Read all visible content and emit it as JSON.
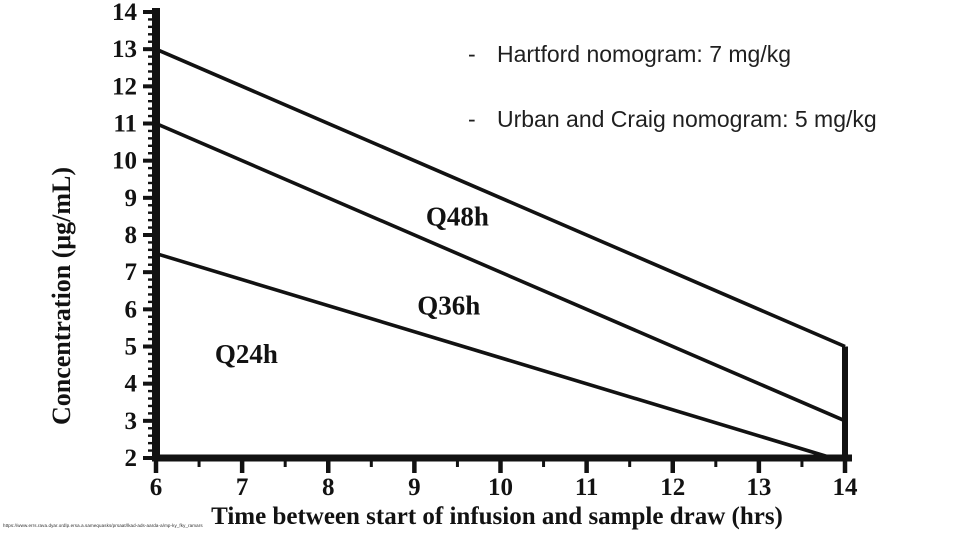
{
  "slide": {
    "notes": [
      {
        "bullet": "-",
        "text": "Hartford nomogram: 7 mg/kg"
      },
      {
        "bullet": "-",
        "text": "Urban and Craig nomogram: 5 mg/kg"
      }
    ],
    "source_url": "https://www.errs.rava.dyar.ordlp.ersa.a.samequasks/prsaat/lkad-ads-aarda-a/mp-ky_fky_ramars",
    "text_color": "#1f1f1f"
  },
  "chart_data": {
    "type": "line",
    "title": "",
    "xlabel": "Time between start of infusion and sample draw (hrs)",
    "ylabel": "Concentration (μg/mL)",
    "xlim": [
      6,
      14
    ],
    "ylim": [
      2,
      14
    ],
    "x_major_ticks": [
      6,
      7,
      8,
      9,
      10,
      11,
      12,
      13,
      14
    ],
    "x_minor_step": 0.5,
    "y_major_ticks": [
      2,
      3,
      4,
      5,
      6,
      7,
      8,
      9,
      10,
      11,
      12,
      13,
      14
    ],
    "y_minor_step": 0.2,
    "grid": false,
    "legend_position": "inline-labels",
    "ink_color": "#121212",
    "series": [
      {
        "name": "Q48h",
        "points": [
          [
            6,
            13
          ],
          [
            14,
            5
          ]
        ]
      },
      {
        "name": "Q36h",
        "points": [
          [
            6,
            11
          ],
          [
            14,
            3
          ]
        ]
      },
      {
        "name": "Q24h",
        "points": [
          [
            6,
            7.5
          ],
          [
            13.85,
            2
          ]
        ]
      }
    ],
    "right_boundary": {
      "points": [
        [
          14,
          5
        ],
        [
          14,
          2
        ]
      ]
    },
    "annotations": [
      {
        "text": "Q48h",
        "x": 9.5,
        "y": 8.5
      },
      {
        "text": "Q36h",
        "x": 9.4,
        "y": 6.1
      },
      {
        "text": "Q24h",
        "x": 7.05,
        "y": 4.8
      }
    ]
  }
}
